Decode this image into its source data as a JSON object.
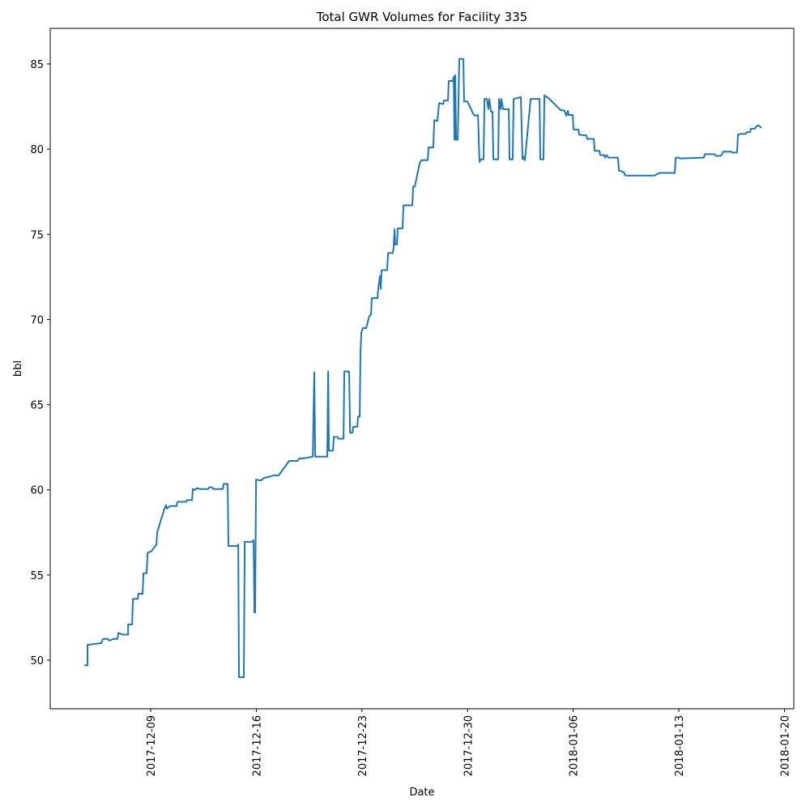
{
  "chart_data": {
    "type": "line",
    "title": "Total GWR Volumes for Facility 335",
    "x_label": "Date",
    "y_label": "bbl",
    "color": "#1f77b4",
    "x": [
      736667.6,
      736667.81,
      736667.81,
      736668.73,
      736668.83,
      736669.15,
      736669.26,
      736669.53,
      736669.8,
      736669.85,
      736670.17,
      736670.5,
      736670.5,
      736670.77,
      736670.82,
      736671.14,
      736671.19,
      736671.46,
      736671.52,
      736671.73,
      736671.79,
      736672.05,
      736672.38,
      736672.43,
      736672.91,
      736673.02,
      736673.07,
      736673.29,
      736673.72,
      736673.77,
      736674.36,
      736674.42,
      736674.74,
      736674.79,
      736674.95,
      736675.06,
      736675.27,
      736675.81,
      736675.87,
      736676.08,
      736676.13,
      736676.78,
      736676.83,
      736677.1,
      736677.15,
      736677.74,
      736677.8,
      736677.85,
      736678.17,
      736678.23,
      736678.76,
      736678.82,
      736678.87,
      736678.92,
      736678.98,
      736679.3,
      736679.52,
      736680.0,
      736680.11,
      736680.48,
      736681.18,
      736681.72,
      736681.88,
      736682.15,
      736682.74,
      736682.84,
      736682.9,
      736683.7,
      736683.76,
      736683.81,
      736684.08,
      736684.13,
      736684.4,
      736684.45,
      736684.78,
      736684.83,
      736685.15,
      736685.21,
      736685.37,
      736685.42,
      736685.69,
      736685.74,
      736685.85,
      736685.9,
      736685.96,
      736686.06,
      736686.28,
      736686.49,
      736686.6,
      736686.65,
      736687.03,
      736687.08,
      736687.19,
      736687.25,
      736687.3,
      736687.67,
      736687.73,
      736688.05,
      736688.1,
      736688.16,
      736688.21,
      736688.32,
      736688.37,
      736688.69,
      736688.75,
      736689.34,
      736689.39,
      736689.5,
      736689.82,
      736689.93,
      736690.36,
      736690.41,
      736690.73,
      736690.79,
      736691.0,
      736691.11,
      736691.38,
      736691.43,
      736691.7,
      736691.75,
      736692.02,
      736692.08,
      736692.13,
      736692.18,
      736692.24,
      736692.35,
      736692.45,
      736692.72,
      736692.77,
      736692.99,
      736693.36,
      736693.47,
      736693.69,
      736693.79,
      736693.9,
      736694.06,
      736694.12,
      736694.28,
      736694.38,
      736694.44,
      736694.55,
      736694.65,
      736694.71,
      736695.03,
      736695.08,
      736695.19,
      736695.24,
      736695.35,
      736695.73,
      736695.78,
      736695.99,
      736696.05,
      736696.53,
      736696.64,
      736696.75,
      736696.8,
      736697.18,
      736697.77,
      736697.82,
      736698.03,
      736698.09,
      736698.36,
      736699.16,
      736699.43,
      736699.54,
      736699.65,
      736699.7,
      736699.97,
      736700.02,
      736700.34,
      736700.4,
      736700.88,
      736700.93,
      736701.36,
      736701.42,
      736701.74,
      736701.79,
      736702.06,
      736702.11,
      736702.22,
      736702.33,
      736702.97,
      736703.03,
      736703.35,
      736703.46,
      736705.39,
      736705.6,
      736705.71,
      736706.73,
      736706.79,
      736707.0,
      736707.11,
      736708.66,
      736708.72,
      736709.36,
      736709.47,
      736709.79,
      736709.95,
      736710.49,
      736710.54,
      736710.86,
      736710.92,
      736711.13,
      736711.45,
      736711.51,
      736711.72,
      736711.78,
      736712.05,
      736712.1,
      736712.26,
      736712.48
    ],
    "values": [
      49.7,
      49.7,
      50.9,
      51.0,
      51.25,
      51.25,
      51.15,
      51.25,
      51.25,
      51.6,
      51.5,
      51.5,
      52.1,
      52.1,
      53.6,
      53.6,
      53.9,
      53.9,
      55.1,
      55.1,
      56.3,
      56.4,
      56.8,
      57.5,
      58.9,
      59.1,
      58.9,
      59.05,
      59.05,
      59.3,
      59.3,
      59.4,
      59.4,
      60.05,
      60.0,
      60.1,
      60.05,
      60.05,
      60.15,
      60.15,
      60.05,
      60.05,
      60.35,
      60.35,
      56.7,
      56.7,
      56.8,
      49.0,
      49.0,
      56.95,
      56.95,
      57.05,
      52.8,
      52.8,
      60.6,
      60.55,
      60.7,
      60.8,
      60.85,
      60.85,
      61.7,
      61.7,
      61.85,
      61.85,
      61.95,
      66.9,
      61.95,
      61.95,
      66.95,
      62.3,
      62.3,
      63.1,
      63.1,
      63.0,
      63.0,
      66.95,
      66.95,
      63.35,
      63.35,
      63.7,
      63.7,
      64.3,
      64.3,
      68.0,
      69.25,
      69.5,
      69.5,
      70.2,
      70.3,
      71.25,
      71.25,
      71.8,
      72.55,
      71.8,
      72.9,
      72.9,
      73.9,
      73.9,
      74.3,
      75.3,
      74.4,
      74.4,
      75.35,
      75.35,
      76.7,
      76.7,
      77.8,
      77.8,
      79.15,
      79.35,
      79.35,
      80.1,
      80.1,
      81.7,
      81.65,
      82.7,
      82.65,
      82.85,
      82.85,
      84.0,
      84.0,
      84.25,
      80.55,
      84.35,
      80.55,
      80.55,
      85.3,
      85.3,
      82.8,
      82.8,
      82.1,
      81.95,
      82.0,
      79.25,
      79.4,
      79.4,
      82.95,
      82.95,
      82.35,
      82.95,
      82.2,
      82.2,
      79.4,
      79.4,
      82.95,
      82.35,
      82.95,
      82.35,
      82.35,
      79.4,
      79.4,
      82.95,
      83.05,
      79.4,
      79.55,
      79.35,
      82.95,
      82.95,
      79.4,
      79.4,
      83.15,
      83.0,
      82.3,
      82.25,
      81.95,
      82.25,
      82.0,
      82.0,
      81.15,
      81.15,
      80.85,
      80.8,
      80.6,
      80.6,
      79.9,
      79.9,
      79.65,
      79.65,
      79.5,
      79.65,
      79.5,
      79.5,
      78.75,
      78.65,
      78.45,
      78.45,
      78.55,
      78.6,
      78.6,
      79.5,
      79.5,
      79.45,
      79.5,
      79.7,
      79.7,
      79.6,
      79.6,
      79.85,
      79.85,
      79.8,
      79.8,
      80.85,
      80.9,
      80.9,
      81.0,
      81.0,
      81.2,
      81.2,
      81.3,
      81.4,
      81.25
    ],
    "xlim": [
      736665.34,
      736714.62
    ],
    "ylim": [
      47.15,
      87.09
    ],
    "xticks": [
      {
        "value": 736672,
        "label": "2017-12-09"
      },
      {
        "value": 736679,
        "label": "2017-12-16"
      },
      {
        "value": 736686,
        "label": "2017-12-23"
      },
      {
        "value": 736693,
        "label": "2017-12-30"
      },
      {
        "value": 736700,
        "label": "2018-01-06"
      },
      {
        "value": 736707,
        "label": "2018-01-13"
      },
      {
        "value": 736714,
        "label": "2018-01-20"
      }
    ],
    "yticks": [
      50,
      55,
      60,
      65,
      70,
      75,
      80,
      85
    ]
  }
}
